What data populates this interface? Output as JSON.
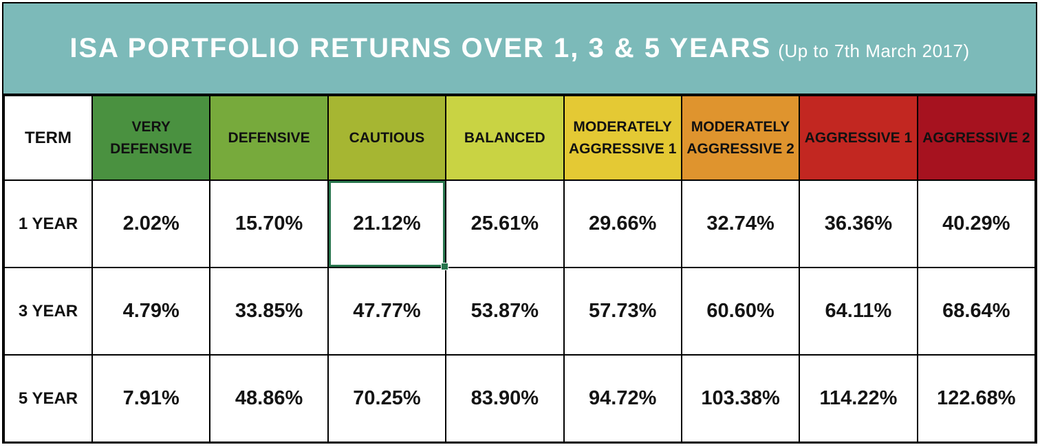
{
  "title": {
    "main": "ISA PORTFOLIO RETURNS OVER 1, 3 & 5 YEARS",
    "sub": "(Up to 7th March 2017)"
  },
  "colors": {
    "title_band": "#7cbab9",
    "border": "#000000",
    "selection_green": "#27754d"
  },
  "table": {
    "term_header": "TERM",
    "columns": [
      {
        "label": "VERY DEFENSIVE",
        "color": "#4a9140"
      },
      {
        "label": "DEFENSIVE",
        "color": "#77aa3c"
      },
      {
        "label": "CAUTIOUS",
        "color": "#a6b632"
      },
      {
        "label": "BALANCED",
        "color": "#c9d343"
      },
      {
        "label": "MODERATELY AGGRESSIVE 1",
        "color": "#e4c934"
      },
      {
        "label": "MODERATELY AGGRESSIVE 2",
        "color": "#df942e"
      },
      {
        "label": "AGGRESSIVE 1",
        "color": "#c22721"
      },
      {
        "label": "AGGRESSIVE 2",
        "color": "#a6121f"
      }
    ],
    "rows": [
      {
        "label": "1 YEAR",
        "values": [
          "2.02%",
          "15.70%",
          "21.12%",
          "25.61%",
          "29.66%",
          "32.74%",
          "36.36%",
          "40.29%"
        ]
      },
      {
        "label": "3 YEAR",
        "values": [
          "4.79%",
          "33.85%",
          "47.77%",
          "53.87%",
          "57.73%",
          "60.60%",
          "64.11%",
          "68.64%"
        ]
      },
      {
        "label": "5 YEAR",
        "values": [
          "7.91%",
          "48.86%",
          "70.25%",
          "83.90%",
          "94.72%",
          "103.38%",
          "114.22%",
          "122.68%"
        ]
      }
    ]
  },
  "selection": {
    "row_label": "1 YEAR",
    "column_label": "CAUTIOUS",
    "color": "#27754d"
  },
  "chart_data": {
    "type": "table",
    "title": "ISA PORTFOLIO RETURNS OVER 1, 3 & 5 YEARS (Up to 7th March 2017)",
    "columns": [
      "TERM",
      "VERY DEFENSIVE",
      "DEFENSIVE",
      "CAUTIOUS",
      "BALANCED",
      "MODERATELY AGGRESSIVE 1",
      "MODERATELY AGGRESSIVE 2",
      "AGGRESSIVE 1",
      "AGGRESSIVE 2"
    ],
    "rows": [
      [
        "1 YEAR",
        2.02,
        15.7,
        21.12,
        25.61,
        29.66,
        32.74,
        36.36,
        40.29
      ],
      [
        "3 YEAR",
        4.79,
        33.85,
        47.77,
        53.87,
        57.73,
        60.6,
        64.11,
        68.64
      ],
      [
        "5 YEAR",
        7.91,
        48.86,
        70.25,
        83.9,
        94.72,
        103.38,
        114.22,
        122.68
      ]
    ],
    "value_unit": "%"
  }
}
